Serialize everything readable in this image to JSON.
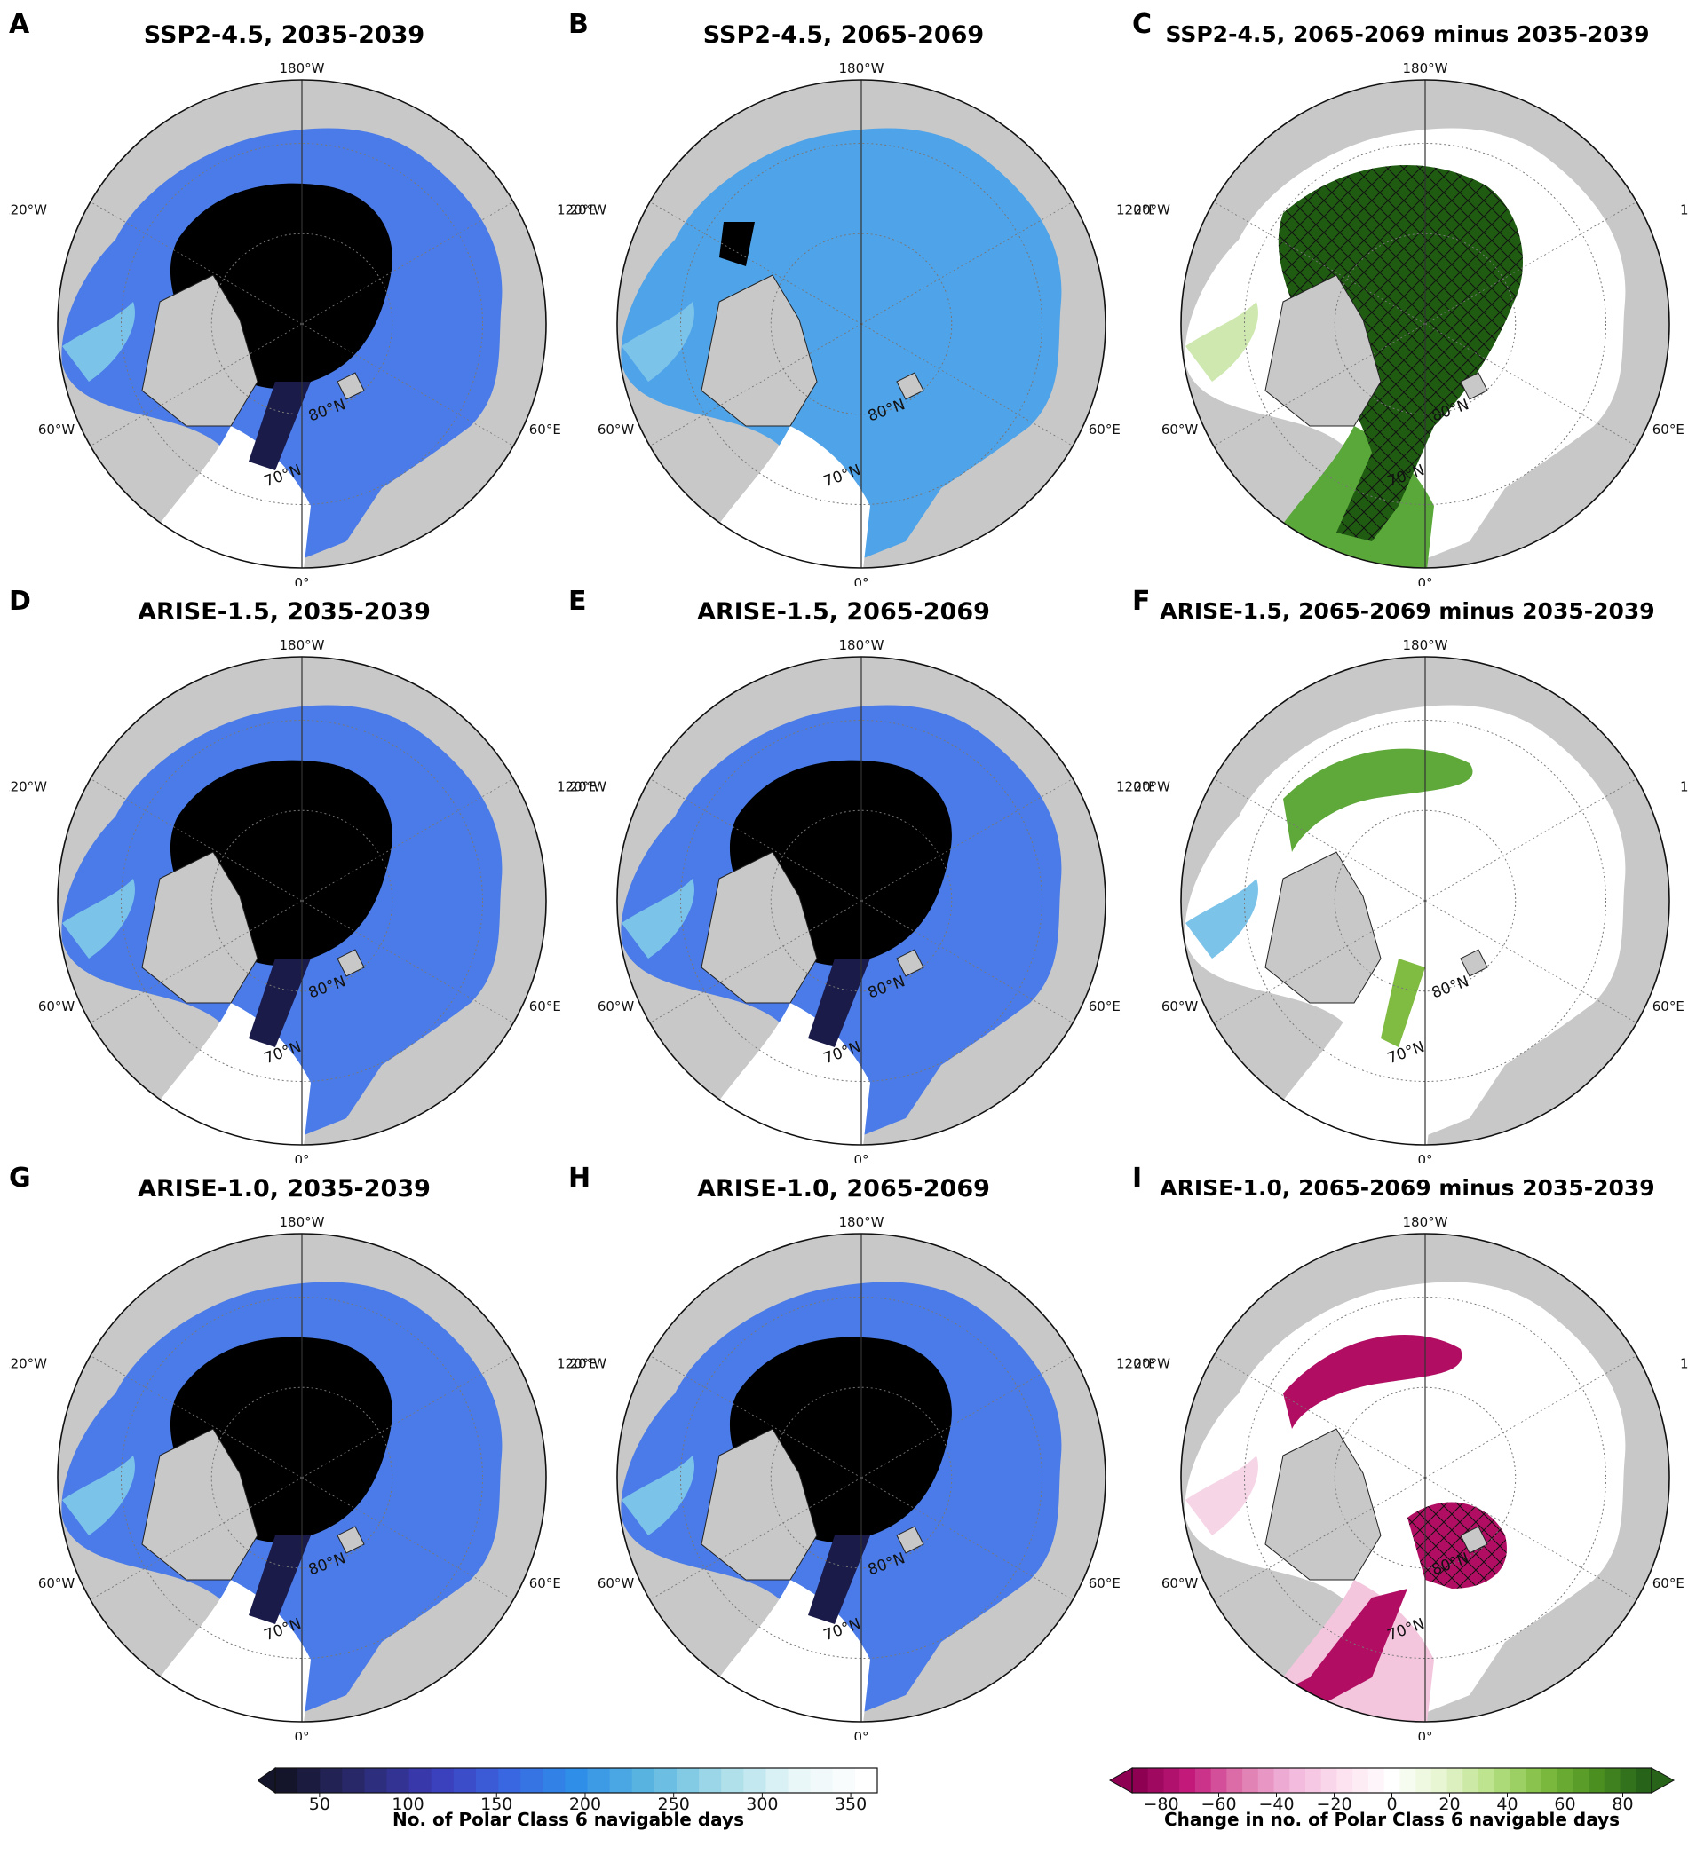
{
  "panels": [
    {
      "letter": "A",
      "title": "SSP2-4.5, 2035-2039",
      "variant": "days",
      "style": "black"
    },
    {
      "letter": "B",
      "title": "SSP2-4.5, 2065-2069",
      "variant": "days",
      "style": "lightblue"
    },
    {
      "letter": "C",
      "title": "SSP2-4.5, 2065-2069 minus 2035-2039",
      "variant": "diff",
      "style": "green"
    },
    {
      "letter": "D",
      "title": "ARISE-1.5, 2035-2039",
      "variant": "days",
      "style": "black"
    },
    {
      "letter": "E",
      "title": "ARISE-1.5, 2065-2069",
      "variant": "days",
      "style": "black"
    },
    {
      "letter": "F",
      "title": "ARISE-1.5, 2065-2069 minus 2035-2039",
      "variant": "diff",
      "style": "mixed"
    },
    {
      "letter": "G",
      "title": "ARISE-1.0, 2035-2039",
      "variant": "days",
      "style": "black"
    },
    {
      "letter": "H",
      "title": "ARISE-1.0, 2065-2069",
      "variant": "days",
      "style": "black"
    },
    {
      "letter": "I",
      "title": "ARISE-1.0, 2065-2069 minus 2035-2039",
      "variant": "diff",
      "style": "pink"
    }
  ],
  "map_labels": {
    "lon_top": "180°W",
    "lon_bottom": "0°",
    "lon_ul": "120°W",
    "lon_ur": "120°E",
    "lon_ll": "60°W",
    "lon_lr": "60°E",
    "lat_80": "80°N",
    "lat_70": "70°N"
  },
  "colorbars": [
    {
      "title": "No. of Polar Class 6 navigable days",
      "ticks": [
        "50",
        "100",
        "150",
        "200",
        "250",
        "300",
        "350"
      ],
      "tick_values": [
        50,
        100,
        150,
        200,
        250,
        300,
        350
      ],
      "min": 25,
      "max": 365,
      "colors": [
        "#14142b",
        "#2a2a6e",
        "#3b3bb5",
        "#3a63e0",
        "#2f8fe8",
        "#5bb6e0",
        "#a6dce8",
        "#e8f6f7",
        "#ffffff"
      ]
    },
    {
      "title": "Change in no. of Polar Class 6 navigable days",
      "ticks": [
        "−80",
        "−60",
        "−40",
        "−20",
        "0",
        "20",
        "40",
        "60",
        "80"
      ],
      "tick_values": [
        -80,
        -60,
        -40,
        -20,
        0,
        20,
        40,
        60,
        80
      ],
      "min": -90,
      "max": 90,
      "colors": [
        "#8e0152",
        "#c51b7d",
        "#de77ae",
        "#f1b6da",
        "#fde0ef",
        "#ffffff",
        "#e6f5d0",
        "#b8e186",
        "#7fbc41",
        "#4d9221",
        "#276419"
      ]
    }
  ]
}
